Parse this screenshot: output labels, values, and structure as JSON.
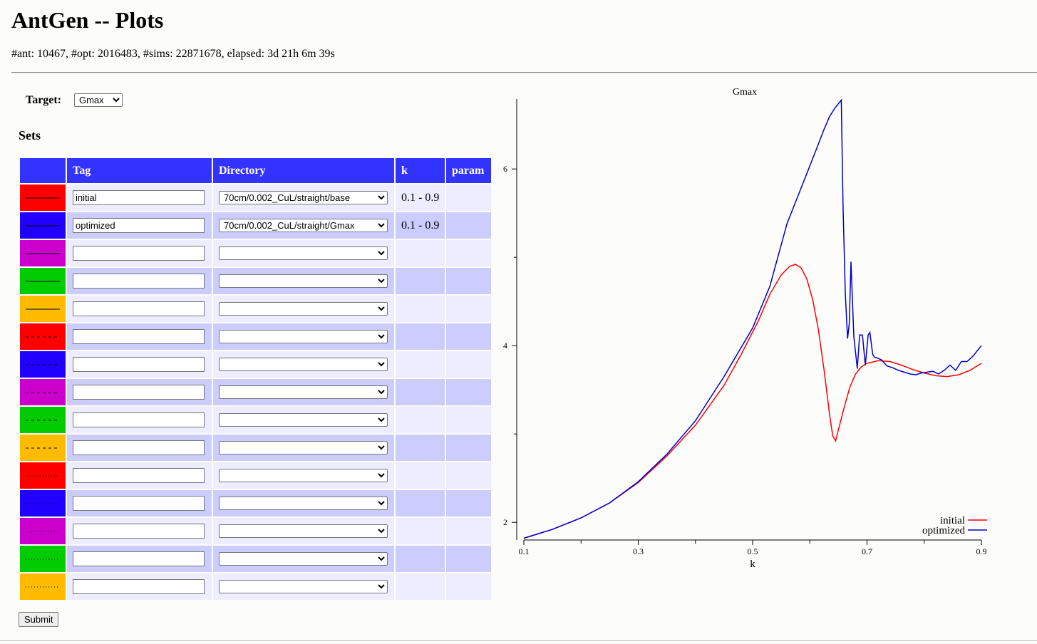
{
  "page": {
    "title": "AntGen -- Plots",
    "stats": "#ant: 10467, #opt: 2016483, #sims: 22871678, elapsed: 3d 21h 6m 39s"
  },
  "target": {
    "label": "Target:",
    "value": "Gmax"
  },
  "sets": {
    "heading": "Sets",
    "columns": [
      "",
      "Tag",
      "Directory",
      "k",
      "param"
    ],
    "rows": [
      {
        "color": "#ff0000",
        "style": "solid",
        "tag": "initial",
        "directory": "70cm/0.002_CuL/straight/base",
        "k": "0.1 - 0.9",
        "param": ""
      },
      {
        "color": "#2200ff",
        "style": "solid",
        "tag": "optimized",
        "directory": "70cm/0.002_CuL/straight/Gmax",
        "k": "0.1 - 0.9",
        "param": ""
      },
      {
        "color": "#cc00cc",
        "style": "solid",
        "tag": "",
        "directory": "",
        "k": "",
        "param": ""
      },
      {
        "color": "#00cc00",
        "style": "solid",
        "tag": "",
        "directory": "",
        "k": "",
        "param": ""
      },
      {
        "color": "#ffbb00",
        "style": "solid",
        "tag": "",
        "directory": "",
        "k": "",
        "param": ""
      },
      {
        "color": "#ff0000",
        "style": "dashed",
        "tag": "",
        "directory": "",
        "k": "",
        "param": ""
      },
      {
        "color": "#2200ff",
        "style": "dashed",
        "tag": "",
        "directory": "",
        "k": "",
        "param": ""
      },
      {
        "color": "#cc00cc",
        "style": "dashed",
        "tag": "",
        "directory": "",
        "k": "",
        "param": ""
      },
      {
        "color": "#00cc00",
        "style": "dashed",
        "tag": "",
        "directory": "",
        "k": "",
        "param": ""
      },
      {
        "color": "#ffbb00",
        "style": "dashed",
        "tag": "",
        "directory": "",
        "k": "",
        "param": ""
      },
      {
        "color": "#ff0000",
        "style": "dotted",
        "tag": "",
        "directory": "",
        "k": "",
        "param": ""
      },
      {
        "color": "#2200ff",
        "style": "dotted",
        "tag": "",
        "directory": "",
        "k": "",
        "param": ""
      },
      {
        "color": "#cc00cc",
        "style": "dotted",
        "tag": "",
        "directory": "",
        "k": "",
        "param": ""
      },
      {
        "color": "#00cc00",
        "style": "dotted",
        "tag": "",
        "directory": "",
        "k": "",
        "param": ""
      },
      {
        "color": "#ffbb00",
        "style": "dotted",
        "tag": "",
        "directory": "",
        "k": "",
        "param": ""
      }
    ]
  },
  "submit_label": "Submit",
  "chart_data": {
    "type": "line",
    "title": "Gmax",
    "xlabel": "k",
    "ylabel": "",
    "xlim": [
      0.1,
      0.9
    ],
    "ylim": [
      1.8,
      6.8
    ],
    "xticks": [
      0.1,
      0.3,
      0.5,
      0.7,
      0.9
    ],
    "yticks": [
      2,
      4,
      6
    ],
    "legend_position": "bottom-right",
    "series": [
      {
        "name": "initial",
        "color": "#ff0000",
        "x": [
          0.1,
          0.15,
          0.2,
          0.25,
          0.3,
          0.35,
          0.4,
          0.45,
          0.48,
          0.51,
          0.53,
          0.55,
          0.565,
          0.575,
          0.585,
          0.595,
          0.605,
          0.615,
          0.625,
          0.635,
          0.64,
          0.645,
          0.65,
          0.66,
          0.67,
          0.68,
          0.69,
          0.7,
          0.72,
          0.74,
          0.76,
          0.78,
          0.8,
          0.82,
          0.84,
          0.86,
          0.88,
          0.9
        ],
        "y": [
          1.82,
          1.92,
          2.05,
          2.22,
          2.45,
          2.75,
          3.1,
          3.55,
          3.9,
          4.28,
          4.58,
          4.8,
          4.9,
          4.92,
          4.88,
          4.75,
          4.52,
          4.18,
          3.72,
          3.2,
          2.98,
          2.92,
          3.05,
          3.3,
          3.53,
          3.68,
          3.76,
          3.8,
          3.83,
          3.82,
          3.78,
          3.73,
          3.69,
          3.66,
          3.65,
          3.67,
          3.72,
          3.8
        ]
      },
      {
        "name": "optimized",
        "color": "#0000cc",
        "x": [
          0.1,
          0.15,
          0.2,
          0.25,
          0.3,
          0.35,
          0.4,
          0.45,
          0.5,
          0.53,
          0.56,
          0.59,
          0.61,
          0.625,
          0.635,
          0.645,
          0.655,
          0.658,
          0.662,
          0.666,
          0.669,
          0.672,
          0.677,
          0.683,
          0.687,
          0.692,
          0.697,
          0.702,
          0.705,
          0.71,
          0.713,
          0.718,
          0.725,
          0.735,
          0.745,
          0.755,
          0.765,
          0.775,
          0.785,
          0.795,
          0.805,
          0.815,
          0.825,
          0.835,
          0.845,
          0.855,
          0.865,
          0.875,
          0.885,
          0.9
        ],
        "y": [
          1.82,
          1.92,
          2.05,
          2.22,
          2.46,
          2.77,
          3.15,
          3.65,
          4.2,
          4.67,
          5.38,
          5.87,
          6.2,
          6.45,
          6.6,
          6.7,
          6.78,
          5.6,
          4.6,
          4.08,
          4.25,
          4.95,
          4.1,
          3.74,
          4.12,
          4.12,
          3.78,
          4.12,
          4.15,
          3.9,
          3.87,
          3.86,
          3.84,
          3.77,
          3.75,
          3.72,
          3.7,
          3.68,
          3.67,
          3.69,
          3.7,
          3.71,
          3.68,
          3.72,
          3.78,
          3.72,
          3.82,
          3.82,
          3.88,
          4.0
        ]
      }
    ]
  }
}
